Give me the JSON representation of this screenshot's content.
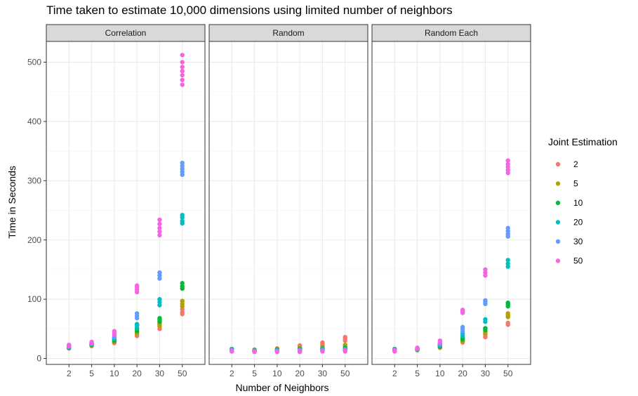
{
  "chart_data": {
    "type": "scatter",
    "title": "Time taken to estimate 10,000 dimensions using limited number of neighbors",
    "xlabel": "Number of Neighbors",
    "ylabel": "Time in Seconds",
    "x_categories": [
      "2",
      "5",
      "10",
      "20",
      "30",
      "50"
    ],
    "ylim": [
      -10,
      535
    ],
    "y_ticks": [
      0,
      100,
      200,
      300,
      400,
      500
    ],
    "grid": true,
    "legend": {
      "title": "Joint Estimation",
      "placement": "right",
      "entries": [
        {
          "label": "2",
          "color": "#F8766D"
        },
        {
          "label": "5",
          "color": "#B79F00"
        },
        {
          "label": "10",
          "color": "#00BA38"
        },
        {
          "label": "20",
          "color": "#00BFC4"
        },
        {
          "label": "30",
          "color": "#619CFF"
        },
        {
          "label": "50",
          "color": "#F564E3"
        }
      ]
    },
    "panels": [
      {
        "name": "Correlation",
        "series": [
          {
            "name": "2",
            "points": [
              [
                "2",
                [
                  17,
                  19,
                  21
                ]
              ],
              [
                "5",
                [
                  21,
                  22,
                  24
                ]
              ],
              [
                "10",
                [
                  26,
                  28,
                  30
                ]
              ],
              [
                "20",
                [
                  38,
                  41,
                  44
                ]
              ],
              [
                "30",
                [
                  50,
                  54,
                  58
                ]
              ],
              [
                "50",
                [
                  75,
                  78,
                  83
                ]
              ]
            ]
          },
          {
            "name": "5",
            "points": [
              [
                "2",
                [
                  18,
                  20
                ]
              ],
              [
                "5",
                [
                  22,
                  23
                ]
              ],
              [
                "10",
                [
                  28,
                  30
                ]
              ],
              [
                "20",
                [
                  42,
                  45
                ]
              ],
              [
                "30",
                [
                  55,
                  58,
                  62
                ]
              ],
              [
                "50",
                [
                  88,
                  92,
                  97
                ]
              ]
            ]
          },
          {
            "name": "10",
            "points": [
              [
                "2",
                [
                  18,
                  20
                ]
              ],
              [
                "5",
                [
                  23,
                  24
                ]
              ],
              [
                "10",
                [
                  30,
                  32
                ]
              ],
              [
                "20",
                [
                  46,
                  50
                ]
              ],
              [
                "30",
                [
                  62,
                  65,
                  68
                ]
              ],
              [
                "50",
                [
                  118,
                  122,
                  127
                ]
              ]
            ]
          },
          {
            "name": "20",
            "points": [
              [
                "2",
                [
                  19,
                  21
                ]
              ],
              [
                "5",
                [
                  24,
                  25
                ]
              ],
              [
                "10",
                [
                  33,
                  35
                ]
              ],
              [
                "20",
                [
                  52,
                  56,
                  58
                ]
              ],
              [
                "30",
                [
                  90,
                  95,
                  100
                ]
              ],
              [
                "50",
                [
                  228,
                  232,
                  238,
                  242
                ]
              ]
            ]
          },
          {
            "name": "30",
            "points": [
              [
                "2",
                [
                  20,
                  22
                ]
              ],
              [
                "5",
                [
                  25,
                  26
                ]
              ],
              [
                "10",
                [
                  36,
                  39
                ]
              ],
              [
                "20",
                [
                  68,
                  72,
                  76
                ]
              ],
              [
                "30",
                [
                  135,
                  140,
                  145
                ]
              ],
              [
                "50",
                [
                  310,
                  315,
                  320,
                  325,
                  330
                ]
              ]
            ]
          },
          {
            "name": "50",
            "points": [
              [
                "2",
                [
                  21,
                  23
                ]
              ],
              [
                "5",
                [
                  26,
                  28
                ]
              ],
              [
                "10",
                [
                  40,
                  43,
                  46
                ]
              ],
              [
                "20",
                [
                  112,
                  116,
                  120,
                  123
                ]
              ],
              [
                "30",
                [
                  208,
                  214,
                  220,
                  227,
                  234
                ]
              ],
              [
                "50",
                [
                  462,
                  470,
                  478,
                  485,
                  492,
                  500,
                  512
                ]
              ]
            ]
          }
        ]
      },
      {
        "name": "Random",
        "series": [
          {
            "name": "2",
            "points": [
              [
                "2",
                [
                  13,
                  15
                ]
              ],
              [
                "5",
                [
                  14,
                  15
                ]
              ],
              [
                "10",
                [
                  15,
                  17
                ]
              ],
              [
                "20",
                [
                  18,
                  20,
                  22
                ]
              ],
              [
                "30",
                [
                  22,
                  25,
                  27
                ]
              ],
              [
                "50",
                [
                  30,
                  33,
                  36
                ]
              ]
            ]
          },
          {
            "name": "5",
            "points": [
              [
                "2",
                [
                  13,
                  15
                ]
              ],
              [
                "5",
                [
                  13,
                  14
                ]
              ],
              [
                "10",
                [
                  14,
                  16
                ]
              ],
              [
                "20",
                [
                  16,
                  18
                ]
              ],
              [
                "30",
                [
                  18,
                  20
                ]
              ],
              [
                "50",
                [
                  20,
                  23
                ]
              ]
            ]
          },
          {
            "name": "10",
            "points": [
              [
                "2",
                [
                  14,
                  16
                ]
              ],
              [
                "5",
                [
                  13,
                  14
                ]
              ],
              [
                "10",
                [
                  13,
                  15
                ]
              ],
              [
                "20",
                [
                  14,
                  16
                ]
              ],
              [
                "30",
                [
                  15,
                  17
                ]
              ],
              [
                "50",
                [
                  16,
                  18
                ]
              ]
            ]
          },
          {
            "name": "20",
            "points": [
              [
                "2",
                [
                  13,
                  15
                ]
              ],
              [
                "5",
                [
                  12,
                  13
                ]
              ],
              [
                "10",
                [
                  12,
                  14
                ]
              ],
              [
                "20",
                [
                  13,
                  15
                ]
              ],
              [
                "30",
                [
                  14,
                  16
                ]
              ],
              [
                "50",
                [
                  14,
                  16
                ]
              ]
            ]
          },
          {
            "name": "30",
            "points": [
              [
                "2",
                [
                  12,
                  14
                ]
              ],
              [
                "5",
                [
                  12,
                  13
                ]
              ],
              [
                "10",
                [
                  12,
                  13
                ]
              ],
              [
                "20",
                [
                  12,
                  14
                ]
              ],
              [
                "30",
                [
                  13,
                  14
                ]
              ],
              [
                "50",
                [
                  13,
                  15
                ]
              ]
            ]
          },
          {
            "name": "50",
            "points": [
              [
                "2",
                [
                  12,
                  13
                ]
              ],
              [
                "5",
                [
                  11,
                  12
                ]
              ],
              [
                "10",
                [
                  11,
                  12
                ]
              ],
              [
                "20",
                [
                  11,
                  13
                ]
              ],
              [
                "30",
                [
                  12,
                  13
                ]
              ],
              [
                "50",
                [
                  12,
                  14
                ]
              ]
            ]
          }
        ]
      },
      {
        "name": "Random Each",
        "series": [
          {
            "name": "2",
            "points": [
              [
                "2",
                [
                  13,
                  15
                ]
              ],
              [
                "5",
                [
                  14,
                  16
                ]
              ],
              [
                "10",
                [
                  18,
                  20
                ]
              ],
              [
                "20",
                [
                  27,
                  29
                ]
              ],
              [
                "30",
                [
                  36,
                  40
                ]
              ],
              [
                "50",
                [
                  57,
                  60
                ]
              ]
            ]
          },
          {
            "name": "5",
            "points": [
              [
                "2",
                [
                  13,
                  15
                ]
              ],
              [
                "5",
                [
                  15,
                  16
                ]
              ],
              [
                "10",
                [
                  19,
                  21
                ]
              ],
              [
                "20",
                [
                  29,
                  32
                ]
              ],
              [
                "30",
                [
                  42,
                  45
                ]
              ],
              [
                "50",
                [
                  70,
                  73,
                  76
                ]
              ]
            ]
          },
          {
            "name": "10",
            "points": [
              [
                "2",
                [
                  14,
                  16
                ]
              ],
              [
                "5",
                [
                  15,
                  17
                ]
              ],
              [
                "10",
                [
                  20,
                  22
                ]
              ],
              [
                "20",
                [
                  32,
                  35
                ]
              ],
              [
                "30",
                [
                  48,
                  51
                ]
              ],
              [
                "50",
                [
                  88,
                  91,
                  94
                ]
              ]
            ]
          },
          {
            "name": "20",
            "points": [
              [
                "2",
                [
                  13,
                  15
                ]
              ],
              [
                "5",
                [
                  16,
                  17
                ]
              ],
              [
                "10",
                [
                  22,
                  24
                ]
              ],
              [
                "20",
                [
                  38,
                  42
                ]
              ],
              [
                "30",
                [
                  62,
                  66
                ]
              ],
              [
                "50",
                [
                  155,
                  160,
                  166
                ]
              ]
            ]
          },
          {
            "name": "30",
            "points": [
              [
                "2",
                [
                  13,
                  14
                ]
              ],
              [
                "5",
                [
                  16,
                  18
                ]
              ],
              [
                "10",
                [
                  24,
                  26
                ]
              ],
              [
                "20",
                [
                  46,
                  50,
                  53
                ]
              ],
              [
                "30",
                [
                  92,
                  95,
                  98
                ]
              ],
              [
                "50",
                [
                  206,
                  210,
                  215,
                  220
                ]
              ]
            ]
          },
          {
            "name": "50",
            "points": [
              [
                "2",
                [
                  12,
                  14
                ]
              ],
              [
                "5",
                [
                  17,
                  18
                ]
              ],
              [
                "10",
                [
                  27,
                  30
                ]
              ],
              [
                "20",
                [
                  77,
                  80,
                  82
                ]
              ],
              [
                "30",
                [
                  140,
                  145,
                  150
                ]
              ],
              [
                "50",
                [
                  313,
                  318,
                  323,
                  328,
                  334
                ]
              ]
            ]
          }
        ]
      }
    ]
  }
}
